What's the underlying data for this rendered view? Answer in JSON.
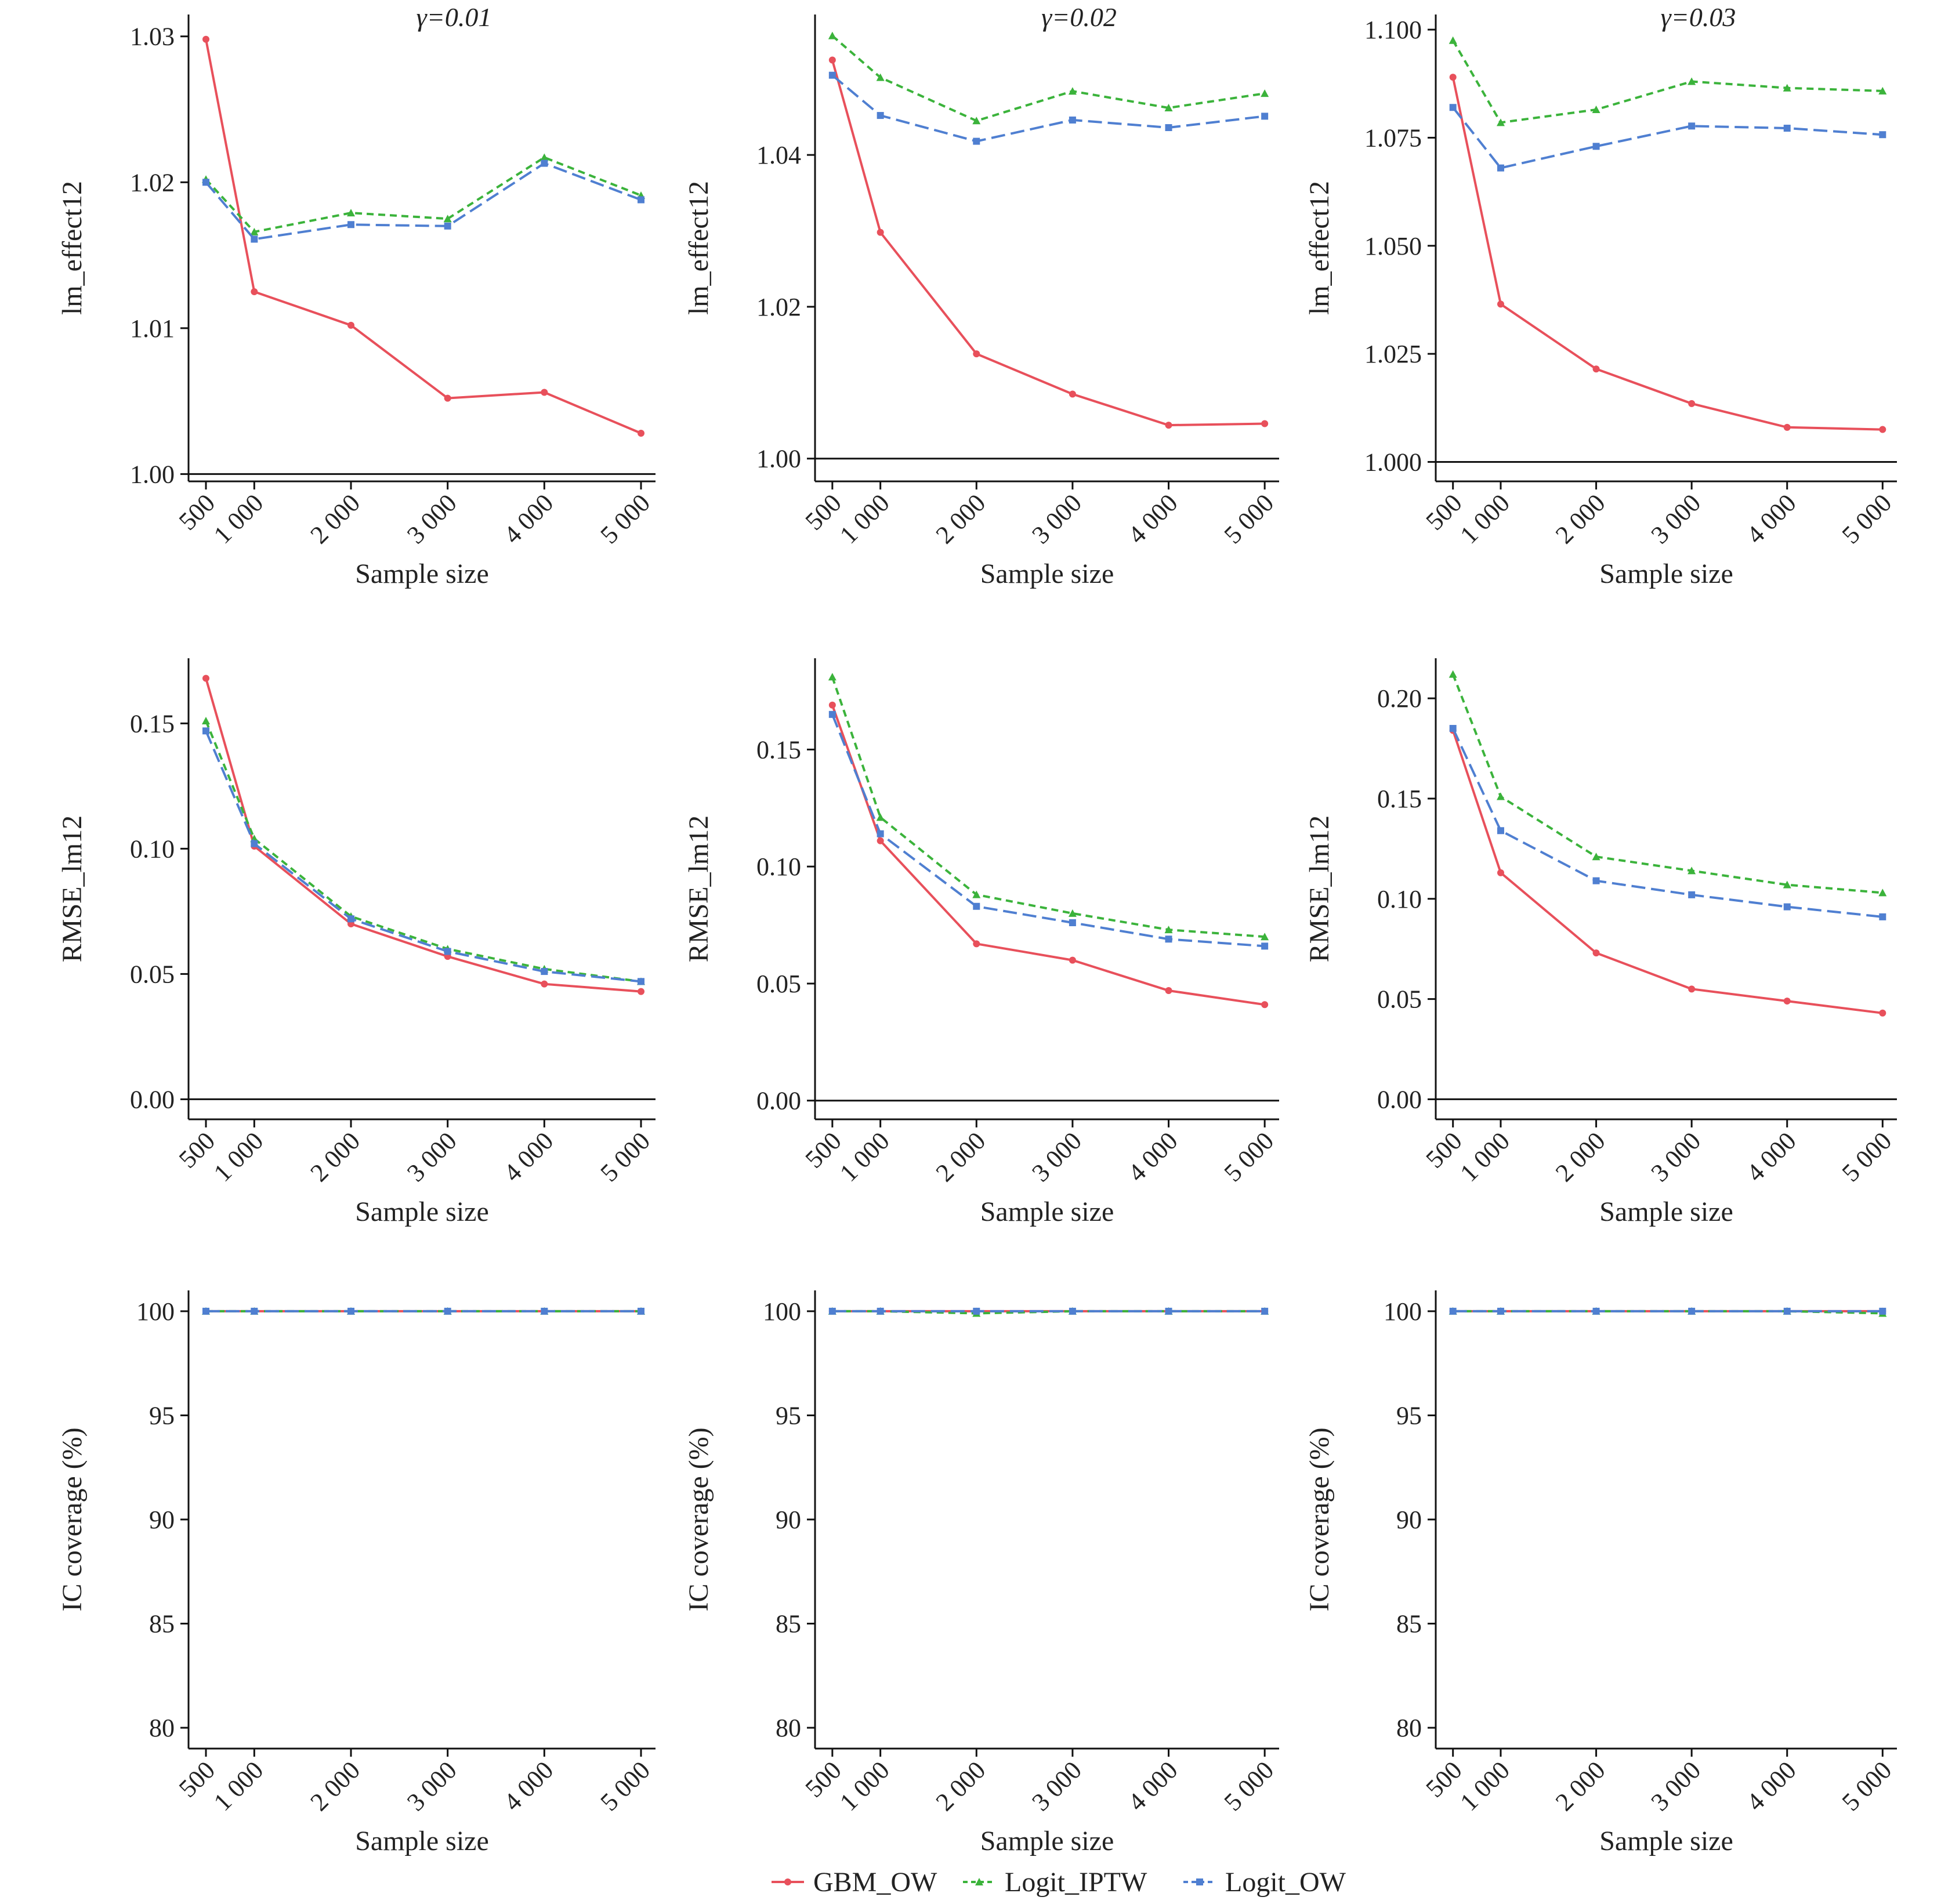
{
  "legend": [
    {
      "name": "GBM_OW",
      "color": "#e8505b",
      "dash": "solid",
      "marker": "circle"
    },
    {
      "name": "Logit_IPTW",
      "color": "#3bb33b",
      "dash": "short",
      "marker": "triangle"
    },
    {
      "name": "Logit_OW",
      "color": "#4f7fd1",
      "dash": "long",
      "marker": "square"
    }
  ],
  "chart_data": [
    {
      "type": "line",
      "title": "γ=0.01",
      "xlabel": "Sample size",
      "ylabel": "lm_effect12",
      "x": [
        500,
        1000,
        2000,
        3000,
        4000,
        5000
      ],
      "ylim": [
        0.9995,
        1.0315
      ],
      "yticks": [
        "1.00",
        "1.01",
        "1.02",
        "1.03"
      ],
      "ytick_values": [
        1.0,
        1.01,
        1.02,
        1.03
      ],
      "zero_line": 1.0,
      "series": [
        {
          "name": "GBM_OW",
          "values": [
            1.0298,
            1.0125,
            1.0102,
            1.0052,
            1.0056,
            1.0028
          ]
        },
        {
          "name": "Logit_IPTW",
          "values": [
            1.0202,
            1.0166,
            1.0179,
            1.0175,
            1.0217,
            1.0191
          ]
        },
        {
          "name": "Logit_OW",
          "values": [
            1.02,
            1.0161,
            1.0171,
            1.017,
            1.0213,
            1.0188
          ]
        }
      ]
    },
    {
      "type": "line",
      "title": "γ=0.02",
      "xlabel": "Sample size",
      "ylabel": "lm_effect12",
      "x": [
        500,
        1000,
        2000,
        3000,
        4000,
        5000
      ],
      "ylim": [
        0.997,
        1.0585
      ],
      "yticks": [
        "1.00",
        "1.02",
        "1.04"
      ],
      "ytick_values": [
        1.0,
        1.02,
        1.04
      ],
      "zero_line": 1.0,
      "series": [
        {
          "name": "GBM_OW",
          "values": [
            1.0525,
            1.0298,
            1.0138,
            1.0085,
            1.0044,
            1.0046
          ]
        },
        {
          "name": "Logit_IPTW",
          "values": [
            1.0557,
            1.0502,
            1.0445,
            1.0484,
            1.0462,
            1.0481
          ]
        },
        {
          "name": "Logit_OW",
          "values": [
            1.0505,
            1.0452,
            1.0418,
            1.0446,
            1.0436,
            1.0451
          ]
        }
      ]
    },
    {
      "type": "line",
      "title": "γ=0.03",
      "xlabel": "Sample size",
      "ylabel": "lm_effect12",
      "x": [
        500,
        1000,
        2000,
        3000,
        4000,
        5000
      ],
      "ylim": [
        0.9955,
        1.1035
      ],
      "yticks": [
        "1.000",
        "1.025",
        "1.050",
        "1.075",
        "1.100"
      ],
      "ytick_values": [
        1.0,
        1.025,
        1.05,
        1.075,
        1.1
      ],
      "zero_line": 1.0,
      "series": [
        {
          "name": "GBM_OW",
          "values": [
            1.089,
            1.0365,
            1.0215,
            1.0135,
            1.008,
            1.0075
          ]
        },
        {
          "name": "Logit_IPTW",
          "values": [
            1.0975,
            1.0785,
            1.0815,
            1.088,
            1.0865,
            1.0858
          ]
        },
        {
          "name": "Logit_OW",
          "values": [
            1.082,
            1.068,
            1.073,
            1.0777,
            1.0772,
            1.0757
          ]
        }
      ]
    },
    {
      "type": "line",
      "title": "",
      "xlabel": "Sample size",
      "ylabel": "RMSE_lm12",
      "x": [
        500,
        1000,
        2000,
        3000,
        4000,
        5000
      ],
      "ylim": [
        -0.008,
        0.176
      ],
      "yticks": [
        "0.00",
        "0.05",
        "0.10",
        "0.15"
      ],
      "ytick_values": [
        0,
        0.05,
        0.1,
        0.15
      ],
      "zero_line": 0,
      "series": [
        {
          "name": "GBM_OW",
          "values": [
            0.168,
            0.101,
            0.07,
            0.057,
            0.046,
            0.043
          ]
        },
        {
          "name": "Logit_IPTW",
          "values": [
            0.151,
            0.104,
            0.073,
            0.06,
            0.052,
            0.047
          ]
        },
        {
          "name": "Logit_OW",
          "values": [
            0.147,
            0.102,
            0.072,
            0.059,
            0.051,
            0.047
          ]
        }
      ]
    },
    {
      "type": "line",
      "title": "",
      "xlabel": "Sample size",
      "ylabel": "RMSE_lm12",
      "x": [
        500,
        1000,
        2000,
        3000,
        4000,
        5000
      ],
      "ylim": [
        -0.008,
        0.189
      ],
      "yticks": [
        "0.00",
        "0.05",
        "0.10",
        "0.15"
      ],
      "ytick_values": [
        0,
        0.05,
        0.1,
        0.15
      ],
      "zero_line": 0,
      "series": [
        {
          "name": "GBM_OW",
          "values": [
            0.169,
            0.111,
            0.067,
            0.06,
            0.047,
            0.041
          ]
        },
        {
          "name": "Logit_IPTW",
          "values": [
            0.181,
            0.121,
            0.088,
            0.08,
            0.073,
            0.07
          ]
        },
        {
          "name": "Logit_OW",
          "values": [
            0.165,
            0.114,
            0.083,
            0.076,
            0.069,
            0.066
          ]
        }
      ]
    },
    {
      "type": "line",
      "title": "",
      "xlabel": "Sample size",
      "ylabel": "RMSE_lm12",
      "x": [
        500,
        1000,
        2000,
        3000,
        4000,
        5000
      ],
      "ylim": [
        -0.01,
        0.22
      ],
      "yticks": [
        "0.00",
        "0.05",
        "0.10",
        "0.15",
        "0.20"
      ],
      "ytick_values": [
        0,
        0.05,
        0.1,
        0.15,
        0.2
      ],
      "zero_line": 0,
      "series": [
        {
          "name": "GBM_OW",
          "values": [
            0.184,
            0.113,
            0.073,
            0.055,
            0.049,
            0.043
          ]
        },
        {
          "name": "Logit_IPTW",
          "values": [
            0.212,
            0.151,
            0.121,
            0.114,
            0.107,
            0.103
          ]
        },
        {
          "name": "Logit_OW",
          "values": [
            0.185,
            0.134,
            0.109,
            0.102,
            0.096,
            0.091
          ]
        }
      ]
    },
    {
      "type": "line",
      "title": "",
      "xlabel": "Sample size",
      "ylabel": "IC coverage (%)",
      "x": [
        500,
        1000,
        2000,
        3000,
        4000,
        5000
      ],
      "ylim": [
        79,
        101
      ],
      "yticks": [
        "80",
        "85",
        "90",
        "95",
        "100"
      ],
      "ytick_values": [
        80,
        85,
        90,
        95,
        100
      ],
      "zero_line": null,
      "series": [
        {
          "name": "GBM_OW",
          "values": [
            100,
            100,
            100,
            100,
            100,
            100
          ]
        },
        {
          "name": "Logit_IPTW",
          "values": [
            100,
            100,
            100,
            100,
            100,
            100
          ]
        },
        {
          "name": "Logit_OW",
          "values": [
            100,
            100,
            100,
            100,
            100,
            100
          ]
        }
      ]
    },
    {
      "type": "line",
      "title": "",
      "xlabel": "Sample size",
      "ylabel": "IC coverage (%)",
      "x": [
        500,
        1000,
        2000,
        3000,
        4000,
        5000
      ],
      "ylim": [
        79,
        101
      ],
      "yticks": [
        "80",
        "85",
        "90",
        "95",
        "100"
      ],
      "ytick_values": [
        80,
        85,
        90,
        95,
        100
      ],
      "zero_line": null,
      "series": [
        {
          "name": "GBM_OW",
          "values": [
            100,
            100,
            100,
            100,
            100,
            100
          ]
        },
        {
          "name": "Logit_IPTW",
          "values": [
            100,
            100,
            99.9,
            100,
            100,
            100
          ]
        },
        {
          "name": "Logit_OW",
          "values": [
            100,
            100,
            100,
            100,
            100,
            100
          ]
        }
      ]
    },
    {
      "type": "line",
      "title": "",
      "xlabel": "Sample size",
      "ylabel": "IC coverage (%)",
      "x": [
        500,
        1000,
        2000,
        3000,
        4000,
        5000
      ],
      "ylim": [
        79,
        101
      ],
      "yticks": [
        "80",
        "85",
        "90",
        "95",
        "100"
      ],
      "ytick_values": [
        80,
        85,
        90,
        95,
        100
      ],
      "zero_line": null,
      "series": [
        {
          "name": "GBM_OW",
          "values": [
            100,
            100,
            100,
            100,
            100,
            100
          ]
        },
        {
          "name": "Logit_IPTW",
          "values": [
            100,
            100,
            100,
            100,
            100,
            99.9
          ]
        },
        {
          "name": "Logit_OW",
          "values": [
            100,
            100,
            100,
            100,
            100,
            100
          ]
        }
      ]
    }
  ],
  "xtick_labels": [
    "500",
    "1 000",
    "2 000",
    "3 000",
    "4 000",
    "5 000"
  ]
}
